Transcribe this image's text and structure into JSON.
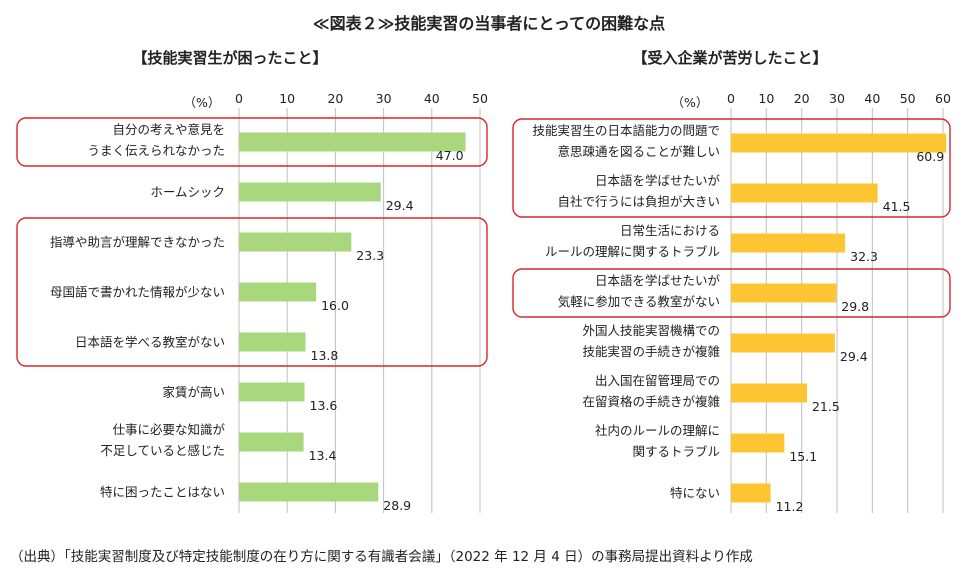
{
  "title": "≪図表２≫技能実習の当事者にとっての困難な点",
  "source": "（出典）「技能実習制度及び特定技能制度の在り方に関する有識者会議」（2022 年 12 月 4 日）の事務局提出資料より作成",
  "colors": {
    "left_bar": "#a9d77d",
    "right_bar": "#fdc532",
    "highlight": "#d9262b",
    "grid": "#bfbfbf"
  },
  "chart_data": [
    {
      "type": "bar",
      "orientation": "horizontal",
      "title": "【技能実習生が困ったこと】",
      "unit_label": "（%）",
      "xlim": [
        0,
        50
      ],
      "ticks": [
        0,
        10,
        20,
        30,
        40,
        50
      ],
      "categories": [
        [
          "自分の考えや意見を",
          "うまく伝えられなかった"
        ],
        [
          "ホームシック"
        ],
        [
          "指導や助言が理解できなかった"
        ],
        [
          "母国語で書かれた情報が少ない"
        ],
        [
          "日本語を学べる教室がない"
        ],
        [
          "家賃が高い"
        ],
        [
          "仕事に必要な知識が",
          "不足していると感じた"
        ],
        [
          "特に困ったことはない"
        ]
      ],
      "values": [
        47.0,
        29.4,
        23.3,
        16.0,
        13.8,
        13.6,
        13.4,
        28.9
      ],
      "value_labels": [
        "47.0",
        "29.4",
        "23.3",
        "16.0",
        "13.8",
        "13.6",
        "13.4",
        "28.9"
      ],
      "highlighted_groups": [
        [
          0
        ],
        [
          2,
          3,
          4
        ]
      ]
    },
    {
      "type": "bar",
      "orientation": "horizontal",
      "title": "【受入企業が苦労したこと】",
      "unit_label": "（%）",
      "xlim": [
        0,
        60
      ],
      "ticks": [
        0,
        10,
        20,
        30,
        40,
        50,
        60
      ],
      "categories": [
        [
          "技能実習生の日本語能力の問題で",
          "意思疎通を図ることが難しい"
        ],
        [
          "日本語を学ばせたいが",
          "自社で行うには負担が大きい"
        ],
        [
          "日常生活における",
          "ルールの理解に関するトラブル"
        ],
        [
          "日本語を学ばせたいが",
          "気軽に参加できる教室がない"
        ],
        [
          "外国人技能実習機構での",
          "技能実習の手続きが複雑"
        ],
        [
          "出入国在留管理局での",
          "在留資格の手続きが複雑"
        ],
        [
          "社内のルールの理解に",
          "関するトラブル"
        ],
        [
          "特にない"
        ]
      ],
      "values": [
        60.9,
        41.5,
        32.3,
        29.8,
        29.4,
        21.5,
        15.1,
        11.2
      ],
      "value_labels": [
        "60.9",
        "41.5",
        "32.3",
        "29.8",
        "29.4",
        "21.5",
        "15.1",
        "11.2"
      ],
      "highlighted_groups": [
        [
          0,
          1
        ],
        [
          3
        ]
      ]
    }
  ]
}
